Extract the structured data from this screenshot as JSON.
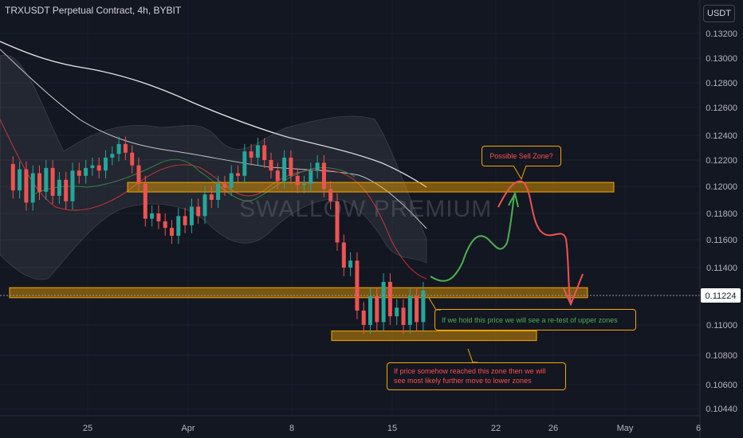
{
  "header": {
    "title": "TRXUSDT Perpetual Contract, 4h, BYBIT",
    "currency_button": "USDT"
  },
  "watermark": "SWALLOW PREMIUM",
  "annotations": {
    "sell_zone": "Possible Sell Zone?",
    "hold_note": "If we hold this price we will see a re-test of upper zones",
    "lower_note_line1": "If price somehow reached this zone then we will",
    "lower_note_line2": "see most likely further move to lower zones"
  },
  "colors": {
    "background": "#131722",
    "grid": "#1e222d",
    "up_candle": "#26a69a",
    "down_candle": "#ef5350",
    "zone_fill": "#f7a600",
    "sell_text": "#ff4d4d",
    "hold_text": "#4caf50",
    "price_tag": "#ffffff"
  },
  "chart_data": {
    "type": "candlestick",
    "title": "TRXUSDT Perpetual Contract, 4h, BYBIT",
    "x_tick_labels": [
      "25",
      "Apr",
      "8",
      "15",
      "22",
      "26",
      "May",
      "6"
    ],
    "y_tick_labels": [
      "0.13200",
      "0.13000",
      "0.12800",
      "0.12600",
      "0.12400",
      "0.12200",
      "0.12000",
      "0.11800",
      "0.11600",
      "0.11400",
      "0.11000",
      "0.10800",
      "0.10600",
      "0.10440"
    ],
    "ylim": [
      0.1043,
      0.1328
    ],
    "current_price": "0.11224",
    "price_series": [
      0.1217,
      0.1197,
      0.1213,
      0.1188,
      0.121,
      0.1196,
      0.1214,
      0.1193,
      0.1205,
      0.1189,
      0.1212,
      0.1208,
      0.1214,
      0.1216,
      0.1212,
      0.1222,
      0.1225,
      0.1233,
      0.1226,
      0.1216,
      0.1202,
      0.1176,
      0.118,
      0.1174,
      0.1169,
      0.1163,
      0.1178,
      0.1171,
      0.1185,
      0.1178,
      0.1194,
      0.119,
      0.1202,
      0.1199,
      0.121,
      0.1208,
      0.1227,
      0.1222,
      0.1232,
      0.122,
      0.1212,
      0.1204,
      0.1222,
      0.1208,
      0.1201,
      0.1202,
      0.1212,
      0.1218,
      0.1198,
      0.1189,
      0.1158,
      0.114,
      0.1145,
      0.111,
      0.11,
      0.112,
      0.1102,
      0.113,
      0.1106,
      0.1112,
      0.11,
      0.112,
      0.1102,
      0.1124
    ],
    "zones": [
      {
        "name": "upper-zone",
        "low": 0.1197,
        "high": 0.1203
      },
      {
        "name": "middle-zone",
        "low": 0.1119,
        "high": 0.1126
      },
      {
        "name": "lower-zone",
        "low": 0.109,
        "high": 0.1096
      }
    ]
  }
}
